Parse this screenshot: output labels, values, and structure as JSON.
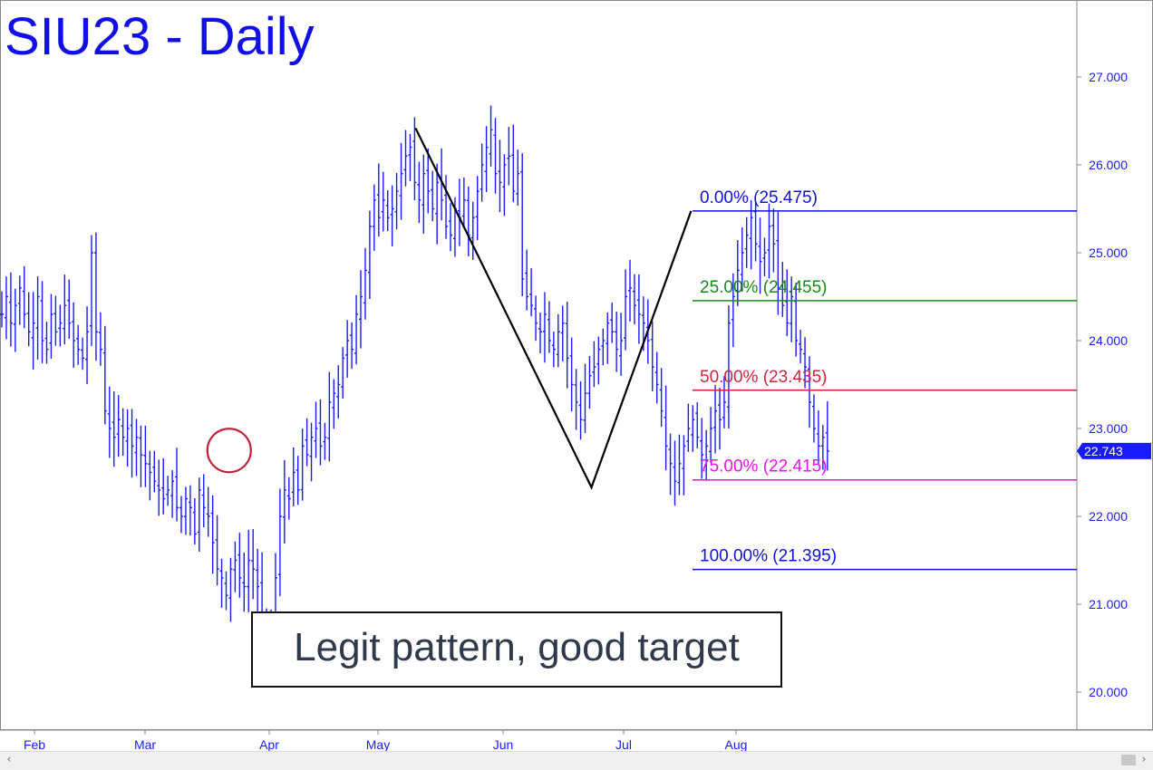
{
  "chart_data": {
    "type": "ohlc",
    "title": "SIU23 - Daily",
    "y_ticks": [
      "27.000",
      "26.000",
      "25.000",
      "24.000",
      "23.000",
      "22.000",
      "21.000",
      "20.000"
    ],
    "ylim": [
      19.6,
      28.0
    ],
    "x_ticks": [
      "Feb",
      "Mar",
      "Apr",
      "May",
      "Jun",
      "Jul",
      "Aug"
    ],
    "last_price": "22.743",
    "pattern_points": [
      {
        "date": "May 10",
        "price": 26.42
      },
      {
        "date": "Jun 23",
        "price": 22.33
      },
      {
        "date": "Jul 19",
        "price": 25.475
      }
    ],
    "retracements": [
      {
        "label": "0.00% (25.475)",
        "value": 25.475,
        "color": "#1010e0"
      },
      {
        "label": "25.00% (24.455)",
        "value": 24.455,
        "color": "#1a8a1a"
      },
      {
        "label": "50.00% (23.435)",
        "value": 23.435,
        "color": "#d0243c"
      },
      {
        "label": "75.00% (22.415)",
        "value": 22.415,
        "color": "#ee10ee"
      },
      {
        "label": "100.00% (21.395)",
        "value": 21.395,
        "color": "#1010e0"
      }
    ],
    "highlight_circle": {
      "date": "Mar 20",
      "price": 22.75
    },
    "annotation": "Legit pattern, good target",
    "colors": {
      "bars": "#1a1aff",
      "axis_text": "#1a1aff",
      "pattern_line": "#000000",
      "circle": "#c0203a"
    },
    "close_series": [
      24.3,
      24.5,
      24.2,
      24.4,
      24.6,
      24.3,
      24.1,
      24.2,
      24.5,
      24.0,
      23.9,
      24.3,
      24.1,
      24.2,
      24.4,
      24.2,
      24.0,
      23.9,
      23.8,
      24.1,
      25.0,
      24.1,
      23.9,
      23.2,
      23.0,
      22.9,
      23.1,
      22.9,
      23.0,
      22.8,
      22.9,
      22.7,
      22.6,
      22.5,
      22.4,
      22.3,
      22.2,
      22.3,
      22.4,
      22.1,
      22.0,
      22.2,
      22.1,
      21.8,
      22.3,
      22.1,
      22.0,
      21.7,
      21.4,
      21.3,
      21.1,
      21.4,
      21.5,
      21.3,
      21.2,
      21.5,
      21.4,
      21.2,
      20.6,
      20.5,
      20.8,
      21.3,
      22.0,
      22.3,
      22.2,
      22.5,
      22.3,
      22.8,
      22.7,
      22.9,
      23.0,
      22.8,
      22.9,
      23.3,
      23.4,
      23.5,
      23.8,
      24.0,
      23.9,
      24.3,
      24.5,
      24.8,
      25.3,
      25.6,
      25.4,
      25.6,
      25.4,
      25.5,
      25.7,
      25.9,
      26.1,
      26.2,
      25.8,
      25.6,
      25.9,
      25.7,
      25.5,
      25.8,
      25.6,
      25.3,
      25.2,
      25.5,
      25.4,
      25.6,
      25.2,
      25.4,
      25.7,
      26.0,
      26.2,
      26.4,
      25.9,
      25.8,
      26.0,
      26.1,
      25.7,
      25.9,
      24.7,
      24.5,
      24.4,
      24.2,
      24.1,
      24.3,
      24.0,
      23.9,
      24.1,
      24.2,
      23.8,
      23.5,
      23.3,
      23.1,
      23.4,
      23.6,
      23.7,
      23.9,
      24.0,
      24.2,
      24.1,
      23.9,
      24.0,
      24.5,
      24.6,
      24.4,
      24.3,
      24.2,
      24.0,
      23.7,
      23.5,
      23.2,
      22.8,
      22.6,
      22.4,
      22.6,
      22.8,
      23.0,
      23.1,
      22.9,
      22.7,
      22.8,
      23.0,
      23.2,
      23.1,
      23.3,
      24.2,
      24.5,
      24.8,
      25.0,
      25.2,
      25.4,
      25.1,
      24.9,
      25.0,
      25.3,
      25.1,
      24.6,
      24.4,
      24.2,
      24.5,
      24.0,
      23.9,
      23.7,
      23.3,
      23.0,
      22.8,
      22.9,
      22.743
    ]
  }
}
